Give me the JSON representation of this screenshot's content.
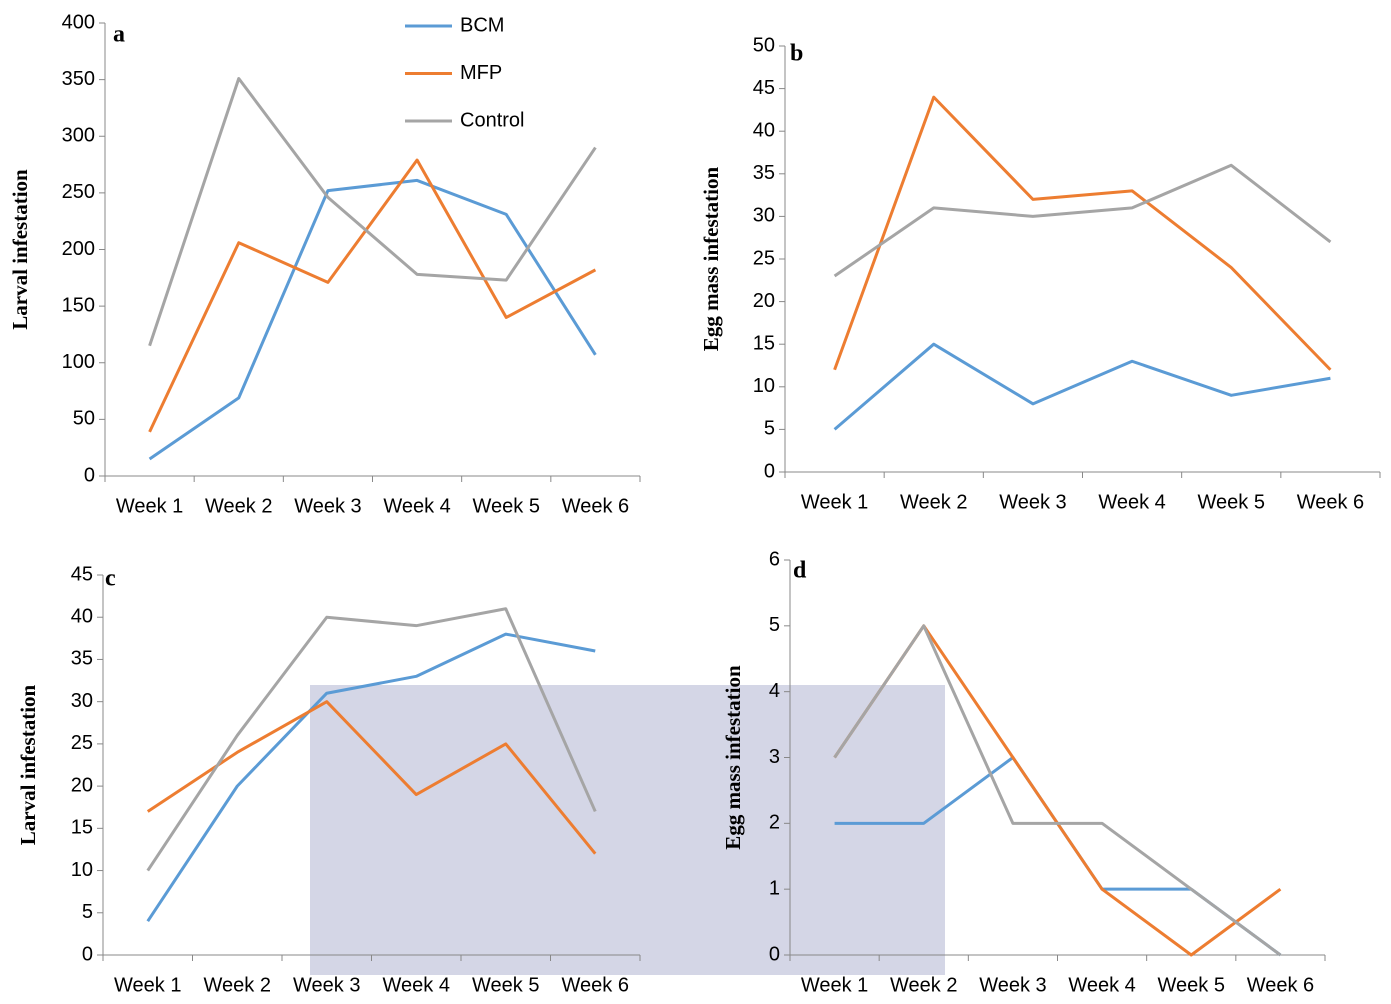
{
  "chart_data": [
    {
      "type": "line",
      "panel": "a",
      "y_label": "Larval infestation",
      "categories": [
        "Week 1",
        "Week 2",
        "Week 3",
        "Week 4",
        "Week 5",
        "Week 6"
      ],
      "ylim": [
        0,
        400
      ],
      "yticks": [
        0,
        50,
        100,
        150,
        200,
        250,
        300,
        350,
        400
      ],
      "legend": true,
      "series": [
        {
          "name": "BCM",
          "color": "#5b9bd5",
          "values": [
            15,
            69,
            252,
            261,
            231,
            107
          ]
        },
        {
          "name": "MFP",
          "color": "#ed7d31",
          "values": [
            39,
            206,
            171,
            279,
            140,
            182
          ]
        },
        {
          "name": "Control",
          "color": "#a5a5a5",
          "values": [
            115,
            351,
            246,
            178,
            173,
            290
          ]
        }
      ]
    },
    {
      "type": "line",
      "panel": "b",
      "y_label": "Egg mass infestation",
      "categories": [
        "Week 1",
        "Week 2",
        "Week 3",
        "Week 4",
        "Week 5",
        "Week 6"
      ],
      "ylim": [
        0,
        50
      ],
      "yticks": [
        0,
        5,
        10,
        15,
        20,
        25,
        30,
        35,
        40,
        45,
        50
      ],
      "legend": false,
      "series": [
        {
          "color": "#5b9bd5",
          "values": [
            5,
            15,
            8,
            13,
            9,
            11
          ]
        },
        {
          "color": "#ed7d31",
          "values": [
            12,
            44,
            32,
            33,
            24,
            12
          ]
        },
        {
          "color": "#a5a5a5",
          "values": [
            23,
            31,
            30,
            31,
            36,
            27
          ]
        }
      ]
    },
    {
      "type": "line",
      "panel": "c",
      "y_label": "Larval infestation",
      "categories": [
        "Week 1",
        "Week 2",
        "Week 3",
        "Week 4",
        "Week 5",
        "Week 6"
      ],
      "ylim": [
        0,
        45
      ],
      "yticks": [
        0,
        5,
        10,
        15,
        20,
        25,
        30,
        35,
        40,
        45
      ],
      "legend": false,
      "series": [
        {
          "color": "#5b9bd5",
          "values": [
            4,
            20,
            31,
            33,
            38,
            36
          ]
        },
        {
          "color": "#ed7d31",
          "values": [
            17,
            24,
            30,
            19,
            25,
            12
          ]
        },
        {
          "color": "#a5a5a5",
          "values": [
            10,
            26,
            40,
            39,
            41,
            17
          ]
        }
      ]
    },
    {
      "type": "line",
      "panel": "d",
      "y_label": "Egg mass infestation",
      "categories": [
        "Week 1",
        "Week 2",
        "Week 3",
        "Week 4",
        "Week 5",
        "Week 6"
      ],
      "ylim": [
        0,
        6
      ],
      "yticks": [
        0,
        1,
        2,
        3,
        4,
        5,
        6
      ],
      "legend": false,
      "series": [
        {
          "color": "#5b9bd5",
          "values": [
            2,
            2,
            3,
            1,
            1,
            0
          ]
        },
        {
          "color": "#ed7d31",
          "values": [
            3,
            5,
            3,
            1,
            0,
            1
          ]
        },
        {
          "color": "#a5a5a5",
          "values": [
            3,
            5,
            2,
            2,
            1,
            0
          ]
        }
      ]
    }
  ]
}
